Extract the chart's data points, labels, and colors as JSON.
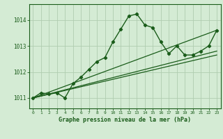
{
  "bg_color": "#d4ebd4",
  "grid_color": "#b0ccb0",
  "line_color": "#1a5c1a",
  "xlabel": "Graphe pression niveau de la mer (hPa)",
  "xlim": [
    -0.5,
    23.5
  ],
  "ylim": [
    1010.6,
    1014.6
  ],
  "yticks": [
    1011,
    1012,
    1013,
    1014
  ],
  "xticks": [
    0,
    1,
    2,
    3,
    4,
    5,
    6,
    7,
    8,
    9,
    10,
    11,
    12,
    13,
    14,
    15,
    16,
    17,
    18,
    19,
    20,
    21,
    22,
    23
  ],
  "main_line_x": [
    0,
    1,
    2,
    3,
    4,
    5,
    6,
    7,
    8,
    9,
    10,
    11,
    12,
    13,
    14,
    15,
    16,
    17,
    18,
    19,
    20,
    21,
    22,
    23
  ],
  "main_line_y": [
    1011.0,
    1011.2,
    1011.15,
    1011.2,
    1011.0,
    1011.55,
    1011.8,
    1012.1,
    1012.4,
    1012.55,
    1013.15,
    1013.65,
    1014.15,
    1014.22,
    1013.8,
    1013.7,
    1013.15,
    1012.7,
    1013.0,
    1012.65,
    1012.65,
    1012.8,
    1013.0,
    1013.6
  ],
  "line2_x": [
    0,
    23
  ],
  "line2_y": [
    1011.0,
    1013.6
  ],
  "line3_x": [
    0,
    23
  ],
  "line3_y": [
    1011.0,
    1012.65
  ],
  "line4_x": [
    0,
    23
  ],
  "line4_y": [
    1011.0,
    1012.8
  ]
}
